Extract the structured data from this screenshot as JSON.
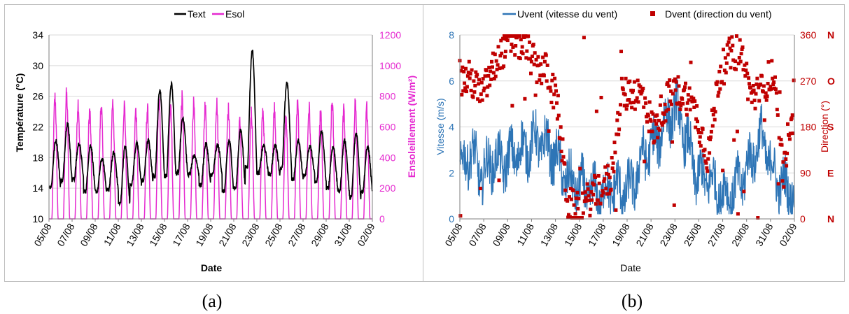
{
  "chart_data": [
    {
      "type": "line",
      "panel_label": "(a)",
      "xlabel": "Date",
      "ylabel": "Température (°C)",
      "y2label": "Ensoleillement (W/m²)",
      "ylim": [
        10,
        34
      ],
      "y2lim": [
        0,
        1200
      ],
      "yticks": [
        10,
        14,
        18,
        22,
        26,
        30,
        34
      ],
      "y2ticks": [
        0,
        200,
        400,
        600,
        800,
        1000,
        1200
      ],
      "xticks": [
        "05/08",
        "07/08",
        "09/08",
        "11/08",
        "13/08",
        "15/08",
        "17/08",
        "19/08",
        "21/08",
        "23/08",
        "25/08",
        "27/08",
        "29/08",
        "31/08",
        "02/09"
      ],
      "grid": true,
      "legend": "top",
      "series": [
        {
          "name": "Text",
          "axis": "left",
          "color": "#000000",
          "day_min": [
            14.2,
            15.0,
            15.2,
            13.6,
            13.6,
            13.8,
            12.0,
            14.6,
            15.0,
            15.6,
            15.6,
            16.0,
            15.8,
            14.4,
            15.8,
            13.6,
            14.0,
            16.8,
            16.0,
            15.8,
            16.6,
            15.2,
            15.8,
            14.8,
            14.0,
            13.6,
            12.8,
            13.6
          ],
          "day_max": [
            20.2,
            22.4,
            19.8,
            19.6,
            17.8,
            18.6,
            19.4,
            19.8,
            20.2,
            26.8,
            27.6,
            23.2,
            18.2,
            19.8,
            19.6,
            20.2,
            21.6,
            32.0,
            19.6,
            19.6,
            27.8,
            20.2,
            19.4,
            21.4,
            19.4,
            20.2,
            21.2,
            19.4
          ]
        },
        {
          "name": "Esol",
          "axis": "right",
          "color": "#e52ad0",
          "day_peaks": [
            850,
            870,
            820,
            760,
            800,
            820,
            800,
            760,
            770,
            840,
            820,
            840,
            800,
            780,
            820,
            780,
            680,
            750,
            760,
            780,
            720,
            800,
            780,
            740,
            820,
            760,
            820,
            780
          ]
        }
      ]
    },
    {
      "type": "line",
      "panel_label": "(b)",
      "xlabel": "Date",
      "ylabel": "Vitesse (m/s)",
      "y2label": "Direction (°)",
      "ylim": [
        0,
        8
      ],
      "y2lim": [
        0,
        360
      ],
      "yticks": [
        0,
        2,
        4,
        6,
        8
      ],
      "y2ticks": [
        0,
        90,
        180,
        270,
        360
      ],
      "y2ticklabels": [
        "N",
        "E",
        "S",
        "O",
        "N"
      ],
      "xticks": [
        "05/08",
        "07/08",
        "09/08",
        "11/08",
        "13/08",
        "15/08",
        "17/08",
        "19/08",
        "21/08",
        "23/08",
        "25/08",
        "27/08",
        "29/08",
        "31/08",
        "02/09"
      ],
      "grid": true,
      "legend": "top",
      "series": [
        {
          "name": "Uvent (vitesse du vent)",
          "axis": "left",
          "color": "#2e75b6",
          "day_level": [
            2.0,
            3.0,
            1.8,
            2.6,
            2.4,
            2.8,
            3.0,
            3.4,
            3.2,
            2.6,
            1.6,
            1.4,
            1.2,
            1.0,
            1.4,
            1.2,
            1.4,
            2.8,
            3.2,
            4.2,
            4.8,
            3.4,
            1.8,
            1.8,
            1.2,
            1.0,
            1.6,
            2.6,
            3.6,
            2.0,
            1.4,
            1.2
          ]
        },
        {
          "name": "Dvent (direction du vent)",
          "axis": "right",
          "color": "#c00000",
          "day_level": [
            270,
            275,
            240,
            290,
            330,
            350,
            340,
            300,
            290,
            230,
            30,
            15,
            40,
            60,
            80,
            240,
            250,
            240,
            170,
            230,
            250,
            240,
            200,
            120,
            280,
            320,
            330,
            240,
            250,
            290,
            80,
            270
          ]
        }
      ]
    }
  ]
}
